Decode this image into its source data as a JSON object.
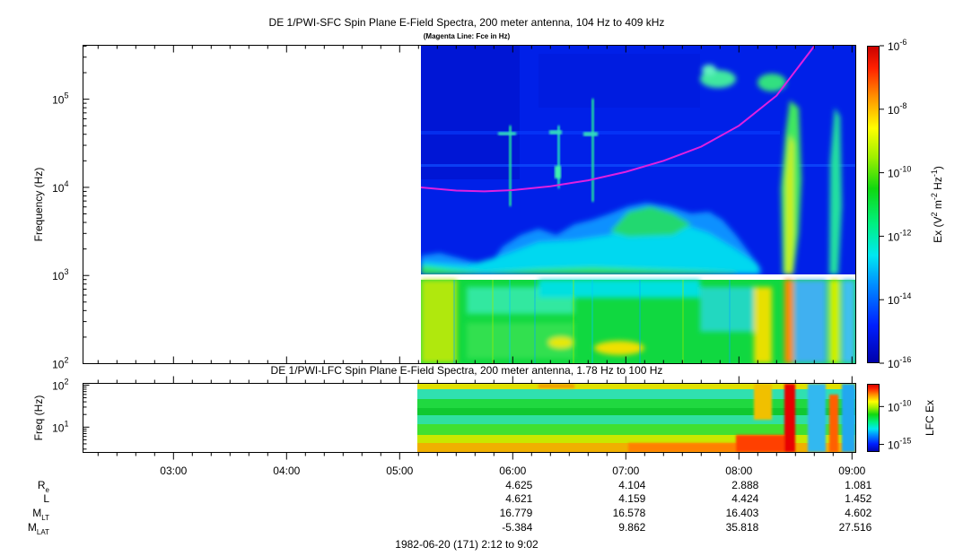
{
  "chart_data": [
    {
      "type": "heatmap",
      "title": "DE 1/PWI-SFC  Spin Plane E-Field Spectra, 200 meter antenna, 104 Hz to 409 kHz",
      "subtitle": "(Magenta Line: Fce in Hz)",
      "ylabel": "Frequency (Hz)",
      "yscale": "log",
      "ylim": [
        100,
        409000
      ],
      "yticks": [
        {
          "base": "10",
          "exp": "2",
          "value": 100
        },
        {
          "base": "10",
          "exp": "3",
          "value": 1000
        },
        {
          "base": "10",
          "exp": "4",
          "value": 10000
        },
        {
          "base": "10",
          "exp": "5",
          "value": 100000
        }
      ],
      "data_start": "05:11",
      "colorbar": {
        "label": "Ex (V² m⁻² Hz⁻¹)",
        "label_parts": {
          "main": "Ex (V",
          "s1": "2",
          "m": " m",
          "s2": "-2",
          "h": " Hz",
          "s3": "-1",
          "end": ")"
        },
        "scale": "log",
        "range": [
          1e-16,
          1e-06
        ],
        "ticks": [
          {
            "base": "10",
            "exp": "-6",
            "value": 1e-06
          },
          {
            "base": "10",
            "exp": "-8",
            "value": 1e-08
          },
          {
            "base": "10",
            "exp": "-10",
            "value": 1e-10
          },
          {
            "base": "10",
            "exp": "-12",
            "value": 1e-12
          },
          {
            "base": "10",
            "exp": "-14",
            "value": 1e-14
          },
          {
            "base": "10",
            "exp": "-16",
            "value": 1e-16
          }
        ]
      },
      "series": [
        {
          "name": "Fce",
          "color": "#e020e0",
          "x": [
            "05:11",
            "05:30",
            "05:45",
            "06:00",
            "06:20",
            "06:40",
            "07:00",
            "07:20",
            "07:40",
            "08:00",
            "08:20",
            "08:40"
          ],
          "y": [
            10000,
            9200,
            9000,
            9300,
            10300,
            12000,
            15000,
            20000,
            29000,
            50000,
            110000,
            400000
          ]
        }
      ]
    },
    {
      "type": "heatmap",
      "title": "DE 1/PWI-LFC  Spin Plane E-Field Spectra, 200 meter antenna, 1.78 Hz to 100 Hz",
      "ylabel": "Freq (Hz)",
      "yscale": "log",
      "ylim": [
        2.5,
        110
      ],
      "yticks": [
        {
          "base": "10",
          "exp": "1",
          "value": 10
        },
        {
          "base": "10",
          "exp": "2",
          "value": 100
        }
      ],
      "colorbar": {
        "label": "LFC Ex",
        "scale": "log",
        "range": [
          1e-16,
          1e-07
        ],
        "ticks": [
          {
            "base": "10",
            "exp": "-10",
            "value": 1e-10
          },
          {
            "base": "10",
            "exp": "-15",
            "value": 1e-15
          }
        ]
      }
    }
  ],
  "x_axis": {
    "start": "02:12",
    "end": "09:02",
    "ticks": [
      "03:00",
      "04:00",
      "05:00",
      "06:00",
      "07:00",
      "08:00",
      "09:00"
    ]
  },
  "ephemeris": {
    "rows": [
      {
        "label": "R",
        "sub": "e",
        "values": [
          "4.625",
          "4.104",
          "2.888",
          "1.081"
        ]
      },
      {
        "label": "L",
        "sub": "",
        "values": [
          "4.621",
          "4.159",
          "4.424",
          "1.452"
        ]
      },
      {
        "label": "M",
        "sub": "LT",
        "values": [
          "16.779",
          "16.578",
          "16.403",
          "4.602"
        ]
      },
      {
        "label": "M",
        "sub": "LAT",
        "values": [
          "-5.384",
          "9.862",
          "35.818",
          "27.516"
        ]
      }
    ],
    "times": [
      "06:00",
      "07:00",
      "08:00",
      "09:00"
    ]
  },
  "footer": "1982-06-20 (171) 2:12 to 9:02"
}
